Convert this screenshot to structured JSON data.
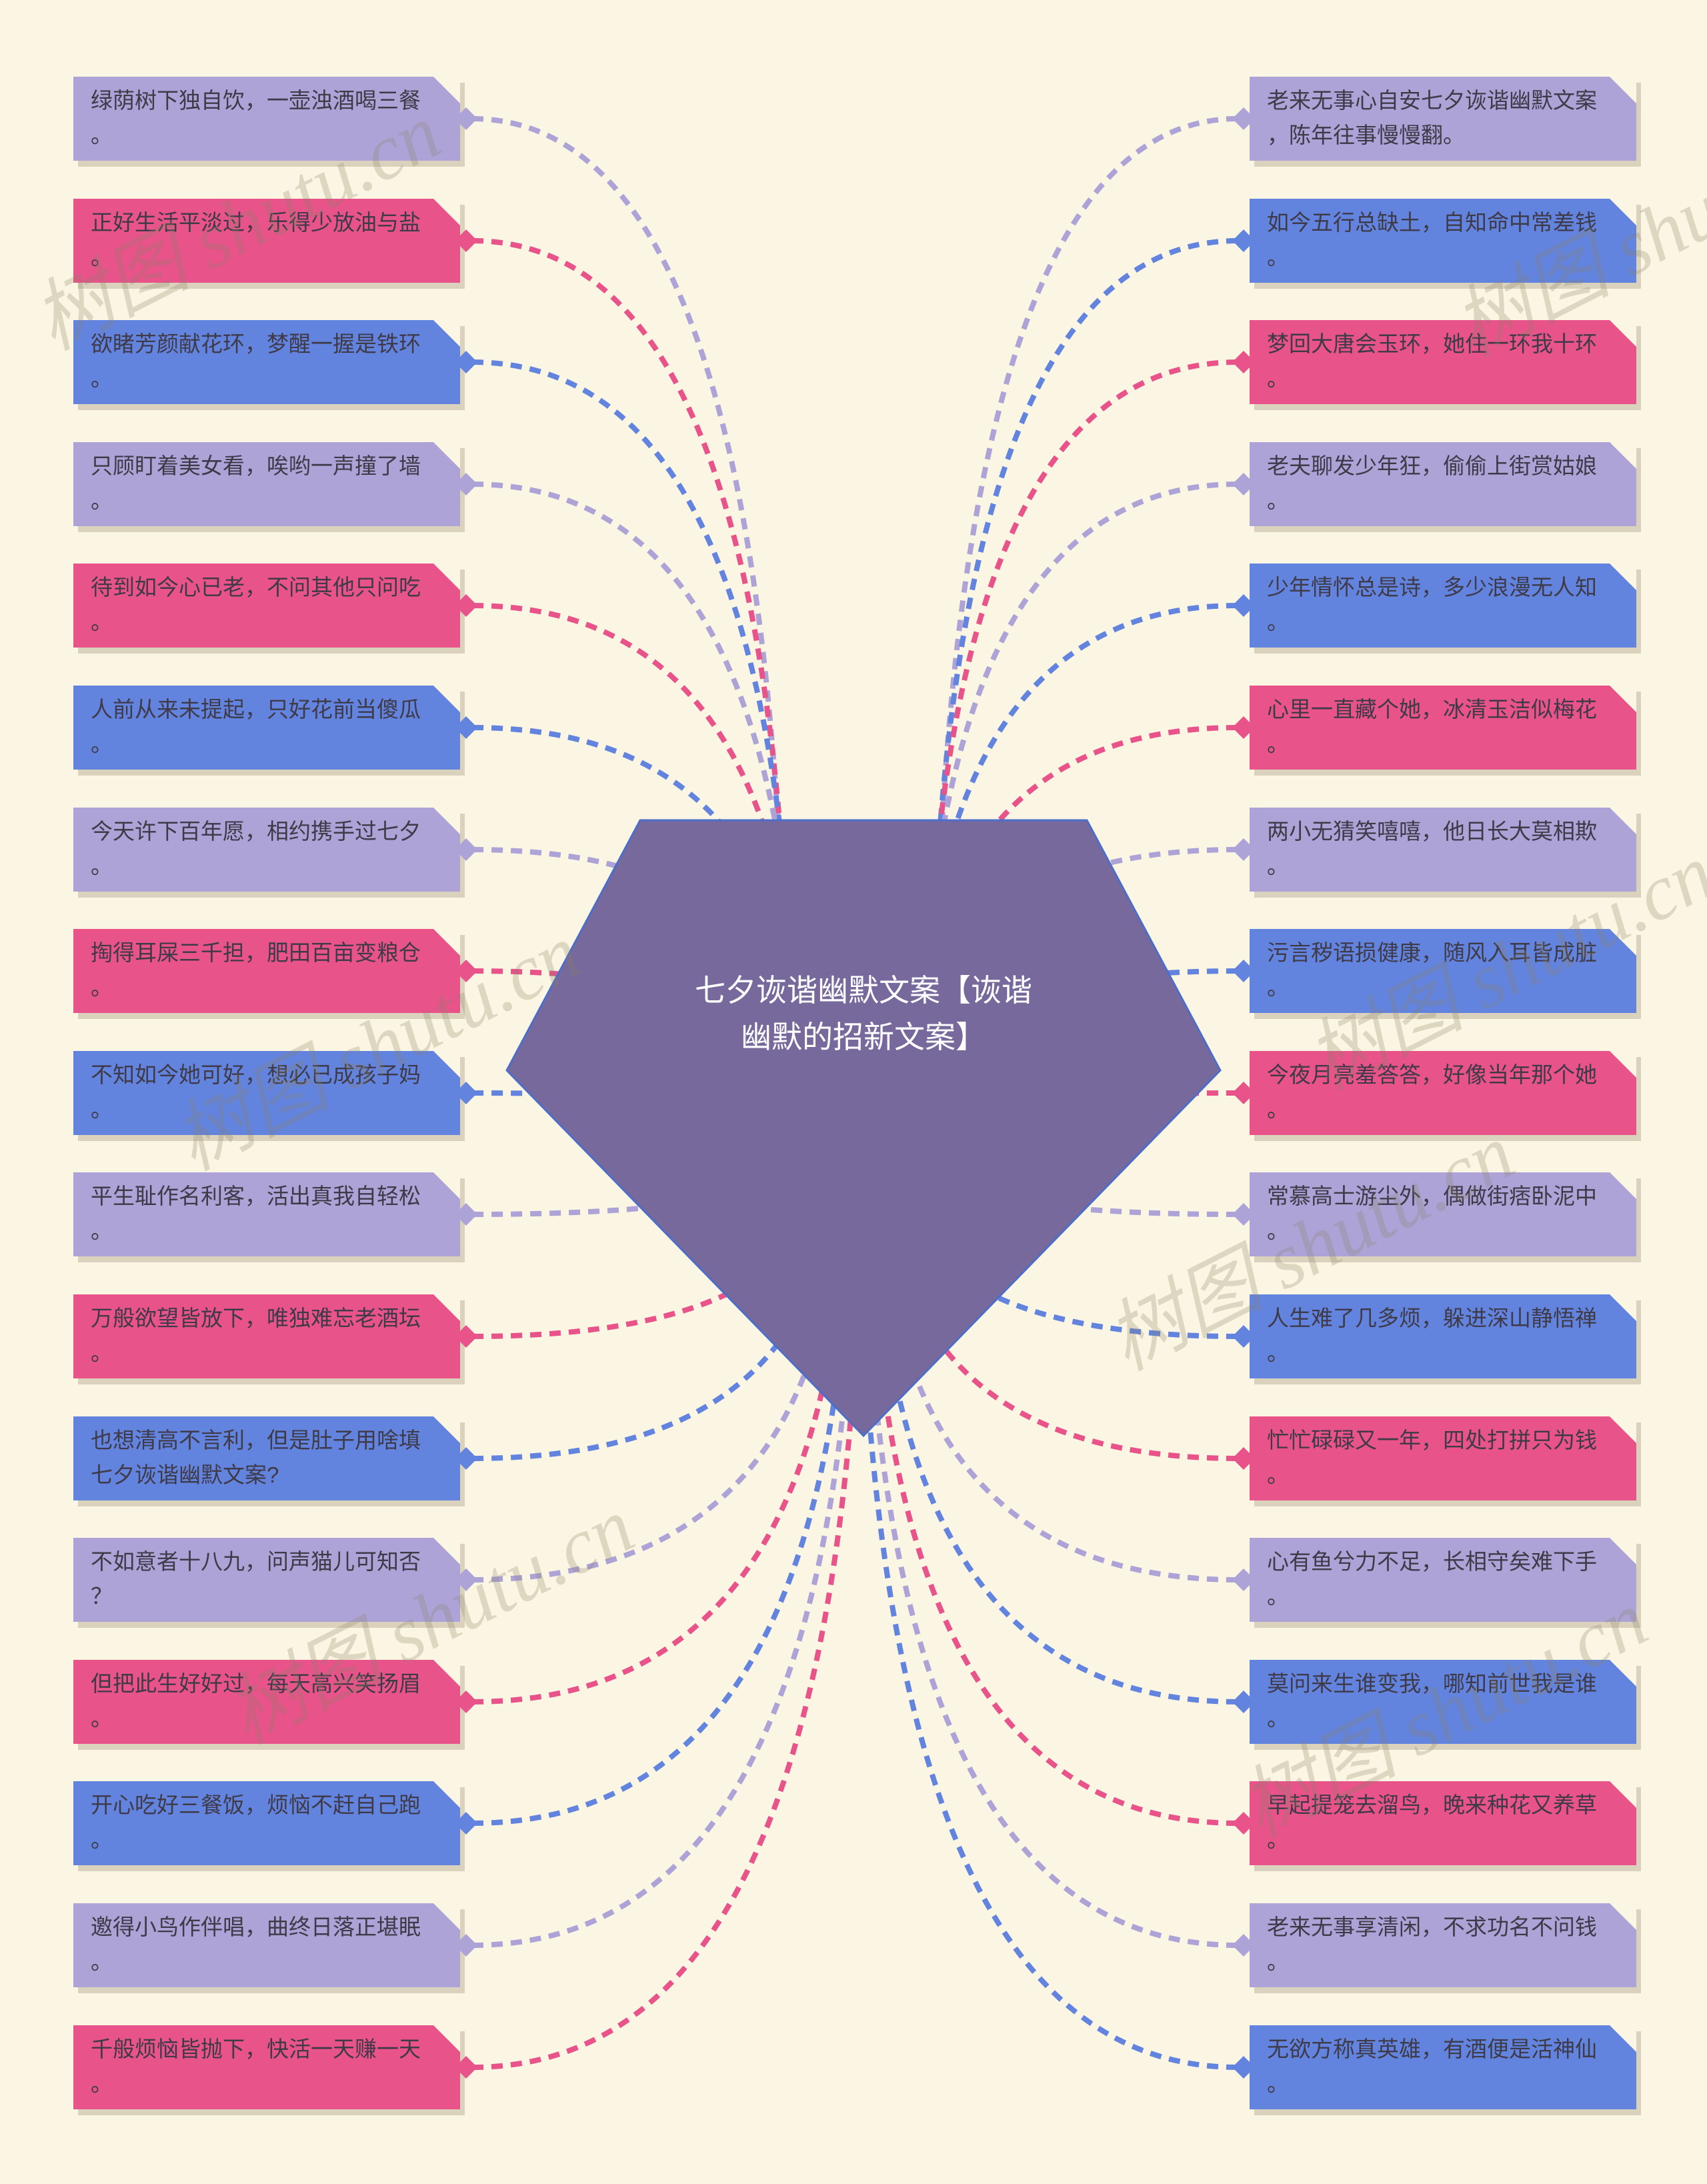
{
  "center": {
    "title": "七夕诙谐幽默文案【诙谐\n幽默的招新文案】"
  },
  "watermark": {
    "text": "树图 shutu.cn"
  },
  "colors": {
    "background": "#FBF6E3",
    "node_lavender": "#ADA3D6",
    "node_pink": "#E8538A",
    "node_blue": "#6384DE",
    "node_text": "#3E3A48",
    "center_fill": "#77699B",
    "center_border": "#4C6EC8",
    "center_text": "#FFFFFF",
    "watermark_color": "#8C8268"
  },
  "left_nodes": [
    {
      "text": "绿荫树下独自饮，一壶浊酒喝三餐\n。",
      "color": "lavender"
    },
    {
      "text": "正好生活平淡过，乐得少放油与盐\n。",
      "color": "pink"
    },
    {
      "text": "欲睹芳颜献花环，梦醒一握是铁环\n。",
      "color": "blue"
    },
    {
      "text": "只顾盯着美女看，唉哟一声撞了墙\n。",
      "color": "lavender"
    },
    {
      "text": "待到如今心已老，不问其他只问吃\n。",
      "color": "pink"
    },
    {
      "text": "人前从来未提起，只好花前当傻瓜\n。",
      "color": "blue"
    },
    {
      "text": "今天许下百年愿，相约携手过七夕\n。",
      "color": "lavender"
    },
    {
      "text": "掏得耳屎三千担，肥田百亩变粮仓\n。",
      "color": "pink"
    },
    {
      "text": "不知如今她可好，想必已成孩子妈\n。",
      "color": "blue"
    },
    {
      "text": "平生耻作名利客，活出真我自轻松\n。",
      "color": "lavender"
    },
    {
      "text": "万般欲望皆放下，唯独难忘老酒坛\n。",
      "color": "pink"
    },
    {
      "text": "也想清高不言利，但是肚子用啥填\n七夕诙谐幽默文案?",
      "color": "blue"
    },
    {
      "text": "不如意者十八九，问声猫儿可知否\n？",
      "color": "lavender"
    },
    {
      "text": "但把此生好好过，每天高兴笑扬眉\n。",
      "color": "pink"
    },
    {
      "text": "开心吃好三餐饭，烦恼不赶自己跑\n。",
      "color": "blue"
    },
    {
      "text": "邀得小鸟作伴唱，曲终日落正堪眠\n。",
      "color": "lavender"
    },
    {
      "text": "千般烦恼皆抛下，快活一天赚一天\n。",
      "color": "pink"
    }
  ],
  "right_nodes": [
    {
      "text": "老来无事心自安七夕诙谐幽默文案\n，陈年往事慢慢翻。",
      "color": "lavender"
    },
    {
      "text": "如今五行总缺土，自知命中常差钱\n。",
      "color": "blue"
    },
    {
      "text": "梦回大唐会玉环，她住一环我十环\n。",
      "color": "pink"
    },
    {
      "text": "老夫聊发少年狂，偷偷上街赏姑娘\n。",
      "color": "lavender"
    },
    {
      "text": "少年情怀总是诗，多少浪漫无人知\n。",
      "color": "blue"
    },
    {
      "text": "心里一直藏个她，冰清玉洁似梅花\n。",
      "color": "pink"
    },
    {
      "text": "两小无猜笑嘻嘻，他日长大莫相欺\n。",
      "color": "lavender"
    },
    {
      "text": "污言秽语损健康，随风入耳皆成脏\n。",
      "color": "blue"
    },
    {
      "text": "今夜月亮羞答答，好像当年那个她\n。",
      "color": "pink"
    },
    {
      "text": "常慕高士游尘外，偶做街痞卧泥中\n。",
      "color": "lavender"
    },
    {
      "text": "人生难了几多烦，躲进深山静悟禅\n。",
      "color": "blue"
    },
    {
      "text": "忙忙碌碌又一年，四处打拼只为钱\n。",
      "color": "pink"
    },
    {
      "text": "心有鱼兮力不足，长相守矣难下手\n。",
      "color": "lavender"
    },
    {
      "text": "莫问来生谁变我，哪知前世我是谁\n。",
      "color": "blue"
    },
    {
      "text": "早起提笼去溜鸟，晚来种花又养草\n。",
      "color": "pink"
    },
    {
      "text": "老来无事享清闲，不求功名不问钱\n。",
      "color": "lavender"
    },
    {
      "text": "无欲方称真英雄，有酒便是活神仙\n。",
      "color": "blue"
    }
  ]
}
